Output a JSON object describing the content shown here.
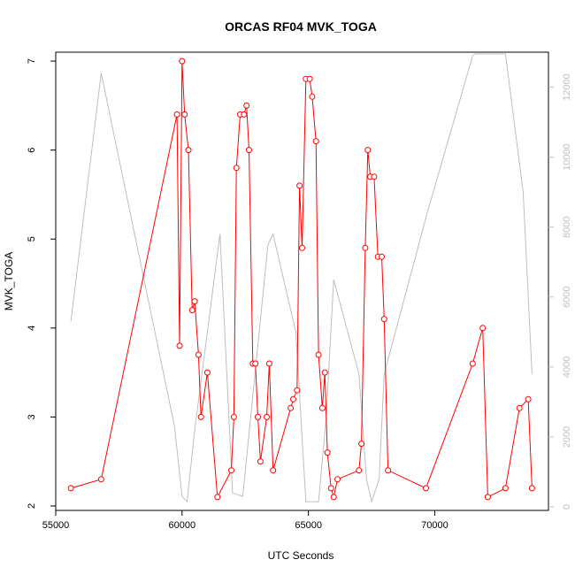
{
  "chart_data": {
    "type": "line",
    "title": "ORCAS RF04 MVK_TOGA",
    "xlabel": "UTC Seconds",
    "ylabel": "MVK_TOGA",
    "xlim": [
      55000,
      74500
    ],
    "ylim": [
      1.95,
      7.1
    ],
    "x_ticks": [
      55000,
      60000,
      65000,
      70000
    ],
    "y_ticks": [
      2,
      3,
      4,
      5,
      6,
      7
    ],
    "y2lim": [
      -100,
      13000
    ],
    "y2_ticks": [
      0,
      2000,
      4000,
      6000,
      8000,
      10000,
      12000
    ],
    "colors": {
      "primary": "#ff0000",
      "secondary": "#bebebe"
    },
    "series": [
      {
        "axis": "left",
        "marker": "open-circle",
        "x": [
          55600,
          56800,
          59800,
          59900,
          60000,
          60100,
          60250,
          60400,
          60500,
          60650,
          60750,
          61000,
          61400,
          61950,
          62050,
          62150,
          62300,
          62450,
          62550,
          62650,
          62800,
          62900,
          63000,
          63100,
          63350,
          63450,
          63600,
          64300,
          64400,
          64550,
          64650,
          64750,
          64900,
          65050,
          65150,
          65300,
          65400,
          65550,
          65650,
          65750,
          65900,
          66000,
          66150,
          67000,
          67100,
          67250,
          67350,
          67450,
          67600,
          67750,
          67900,
          68000,
          68150,
          69650,
          71500,
          71900,
          72100,
          72800,
          73350,
          73700,
          73850
        ],
        "y": [
          2.2,
          2.3,
          6.4,
          3.8,
          7.0,
          6.4,
          6.0,
          4.2,
          4.3,
          3.7,
          3.0,
          3.5,
          2.1,
          2.4,
          3.0,
          5.8,
          6.4,
          6.4,
          6.5,
          6.0,
          3.6,
          3.6,
          3.0,
          2.5,
          3.0,
          3.6,
          2.4,
          3.1,
          3.2,
          3.3,
          5.6,
          4.9,
          6.8,
          6.8,
          6.6,
          6.1,
          3.7,
          3.1,
          3.5,
          2.6,
          2.2,
          2.1,
          2.3,
          2.4,
          2.7,
          4.9,
          6.0,
          5.7,
          5.7,
          4.8,
          4.8,
          4.1,
          2.4,
          2.2,
          3.6,
          4.0,
          2.1,
          2.2,
          3.1,
          3.2,
          2.2
        ]
      },
      {
        "axis": "right",
        "marker": "none",
        "x": [
          55600,
          56800,
          59700,
          60000,
          60200,
          60500,
          61500,
          62000,
          62400,
          63400,
          63600,
          64500,
          64900,
          65400,
          65700,
          66000,
          67000,
          67300,
          67500,
          67800,
          68000,
          69700,
          71500,
          71600,
          72800,
          73500,
          73850
        ],
        "y": [
          5300,
          12400,
          2300,
          300,
          150,
          2200,
          7800,
          400,
          300,
          7500,
          7800,
          5000,
          150,
          150,
          2500,
          6500,
          3800,
          800,
          150,
          800,
          3800,
          8400,
          12900,
          12950,
          12950,
          9000,
          3800
        ]
      }
    ]
  }
}
